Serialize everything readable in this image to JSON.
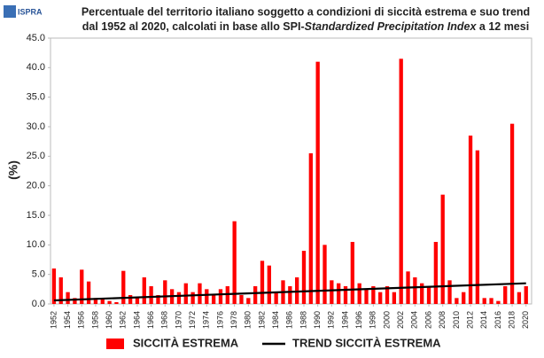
{
  "logo": "ISPRA",
  "chart_data": {
    "type": "bar",
    "title": "Percentuale del territorio italiano soggetto a condizioni di siccità estrema e suo trend",
    "subtitle_parts": [
      "dal 1952 al 2020, calcolati in base allo SPI-",
      "Standardized Precipitation Index",
      " a 12 mesi"
    ],
    "ylabel": "(%)",
    "x": [
      1952,
      1953,
      1954,
      1955,
      1956,
      1957,
      1958,
      1959,
      1960,
      1961,
      1962,
      1963,
      1964,
      1965,
      1966,
      1967,
      1968,
      1969,
      1970,
      1971,
      1972,
      1973,
      1974,
      1975,
      1976,
      1977,
      1978,
      1979,
      1980,
      1981,
      1982,
      1983,
      1984,
      1985,
      1986,
      1987,
      1988,
      1989,
      1990,
      1991,
      1992,
      1993,
      1994,
      1995,
      1996,
      1997,
      1998,
      1999,
      2000,
      2001,
      2002,
      2003,
      2004,
      2005,
      2006,
      2007,
      2008,
      2009,
      2010,
      2011,
      2012,
      2013,
      2014,
      2015,
      2016,
      2017,
      2018,
      2019,
      2020
    ],
    "series": [
      {
        "name": "SICCITÀ ESTREMA",
        "color": "#ff0000",
        "values": [
          6,
          4.5,
          2,
          1,
          5.8,
          3.8,
          1,
          0.8,
          0.5,
          0.3,
          5.6,
          1.5,
          1,
          4.5,
          3,
          1.5,
          4,
          2.5,
          2,
          3.5,
          2,
          3.5,
          2.5,
          1.5,
          2.5,
          3,
          14,
          1.5,
          1,
          3,
          7.3,
          6.5,
          2,
          4,
          3,
          4.5,
          9,
          25.5,
          41,
          10,
          4,
          3.5,
          3,
          10.5,
          3.5,
          2.5,
          3,
          2,
          3,
          2,
          41.5,
          5.5,
          4.5,
          3.5,
          3,
          10.5,
          18.5,
          4,
          1,
          2,
          28.5,
          26,
          1,
          1,
          0.5,
          3,
          30.5,
          2,
          3
        ]
      },
      {
        "name": "TREND SICCITÀ ESTREMA",
        "color": "#000000",
        "type": "line",
        "x": [
          1952,
          2020
        ],
        "values": [
          0.6,
          3.5
        ]
      }
    ],
    "xlim": [
      1951.5,
      2020.8
    ],
    "xticks": [
      1952,
      1954,
      1956,
      1958,
      1960,
      1962,
      1964,
      1966,
      1968,
      1970,
      1972,
      1974,
      1976,
      1978,
      1980,
      1982,
      1984,
      1986,
      1988,
      1990,
      1992,
      1994,
      1996,
      1998,
      2000,
      2002,
      2004,
      2006,
      2008,
      2010,
      2012,
      2014,
      2016,
      2018,
      2020
    ],
    "ylim": [
      0,
      45
    ],
    "yticks": [
      {
        "value": 0,
        "label": "0.0"
      },
      {
        "value": 5,
        "label": "5.0"
      },
      {
        "value": 10,
        "label": "10.0"
      },
      {
        "value": 15,
        "label": "15.0"
      },
      {
        "value": 20,
        "label": "20.0"
      },
      {
        "value": 25,
        "label": "25.0"
      },
      {
        "value": 30,
        "label": "30.0"
      },
      {
        "value": 35,
        "label": "35.0"
      },
      {
        "value": 40,
        "label": "40.0"
      },
      {
        "value": 45,
        "label": "45.0"
      }
    ],
    "grid": false
  }
}
